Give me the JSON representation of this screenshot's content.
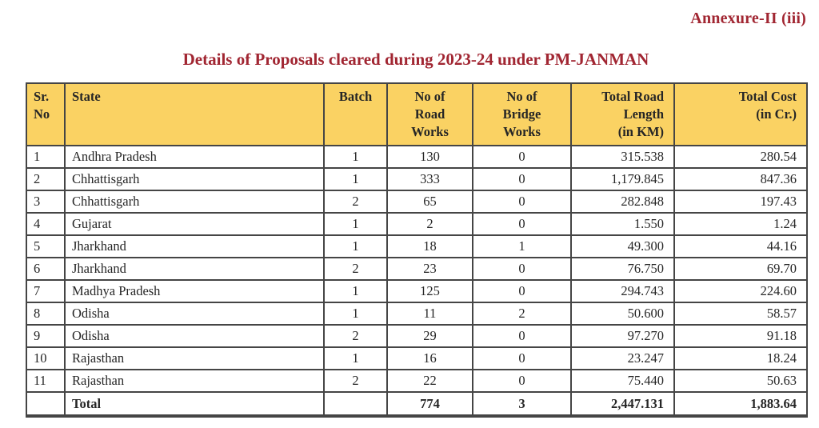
{
  "page": {
    "annexure_label": "Annexure-II (iii)",
    "title": "Details of Proposals cleared during 2023-24 under PM-JANMAN"
  },
  "colors": {
    "accent_red": "#A12632",
    "header_bg": "#FAD263",
    "border_gray": "#454545",
    "text": "#262626"
  },
  "table": {
    "columns": [
      {
        "id": "sr_no",
        "label": "Sr.\nNo",
        "align": "left"
      },
      {
        "id": "state",
        "label": "State",
        "align": "left"
      },
      {
        "id": "batch",
        "label": "Batch",
        "align": "center"
      },
      {
        "id": "road_works",
        "label": "No of\nRoad\nWorks",
        "align": "center"
      },
      {
        "id": "bridge_works",
        "label": "No of\nBridge\nWorks",
        "align": "center"
      },
      {
        "id": "road_length",
        "label": "Total Road\nLength\n(in KM)",
        "align": "right"
      },
      {
        "id": "total_cost",
        "label": "Total Cost\n(in Cr.)",
        "align": "right"
      }
    ],
    "rows": [
      [
        "1",
        "Andhra Pradesh",
        "1",
        "130",
        "0",
        "315.538",
        "280.54"
      ],
      [
        "2",
        "Chhattisgarh",
        "1",
        "333",
        "0",
        "1,179.845",
        "847.36"
      ],
      [
        "3",
        "Chhattisgarh",
        "2",
        "65",
        "0",
        "282.848",
        "197.43"
      ],
      [
        "4",
        "Gujarat",
        "1",
        "2",
        "0",
        "1.550",
        "1.24"
      ],
      [
        "5",
        "Jharkhand",
        "1",
        "18",
        "1",
        "49.300",
        "44.16"
      ],
      [
        "6",
        "Jharkhand",
        "2",
        "23",
        "0",
        "76.750",
        "69.70"
      ],
      [
        "7",
        "Madhya Pradesh",
        "1",
        "125",
        "0",
        "294.743",
        "224.60"
      ],
      [
        "8",
        "Odisha",
        "1",
        "11",
        "2",
        "50.600",
        "58.57"
      ],
      [
        "9",
        "Odisha",
        "2",
        "29",
        "0",
        "97.270",
        "91.18"
      ],
      [
        "10",
        "Rajasthan",
        "1",
        "16",
        "0",
        "23.247",
        "18.24"
      ],
      [
        "11",
        "Rajasthan",
        "2",
        "22",
        "0",
        "75.440",
        "50.63"
      ]
    ],
    "total_row": [
      "",
      "Total",
      "",
      "774",
      "3",
      "2,447.131",
      "1,883.64"
    ]
  }
}
